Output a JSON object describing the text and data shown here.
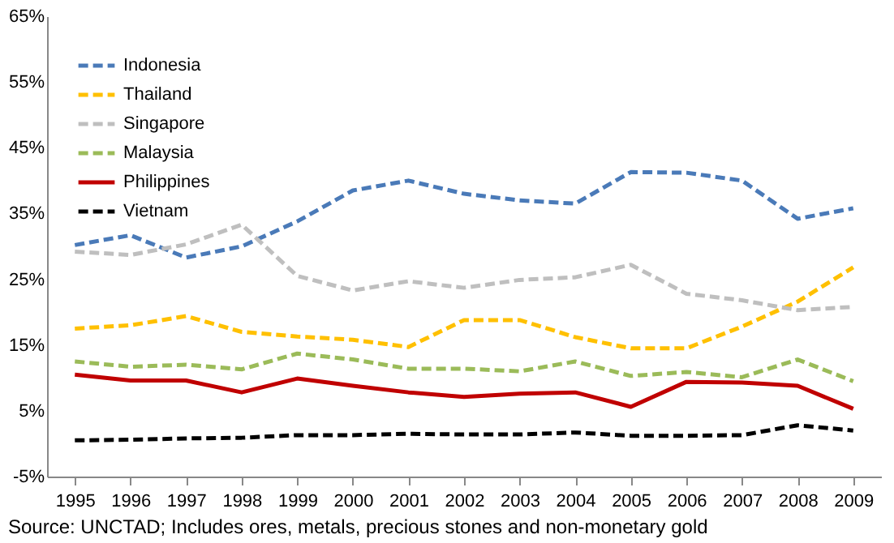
{
  "chart_data": {
    "type": "line",
    "categories": [
      "1995",
      "1996",
      "1997",
      "1998",
      "1999",
      "2000",
      "2001",
      "2002",
      "2003",
      "2004",
      "2005",
      "2006",
      "2007",
      "2008",
      "2009"
    ],
    "series": [
      {
        "name": "Indonesia",
        "color": "#4a7ab8",
        "line_style": "dashed",
        "values": [
          30.2,
          31.7,
          28.3,
          30,
          33.8,
          38.5,
          40,
          38,
          37,
          36.5,
          41.3,
          41.2,
          40,
          34.2,
          35.8
        ]
      },
      {
        "name": "Thailand",
        "color": "#ffc000",
        "line_style": "dashed",
        "values": [
          17.5,
          18,
          19.4,
          17,
          16.3,
          15.8,
          14.7,
          18.8,
          18.8,
          16.2,
          14.5,
          14.5,
          17.8,
          21.6,
          26.8
        ]
      },
      {
        "name": "Singapore",
        "color": "#bfbfbf",
        "line_style": "dashed",
        "values": [
          29.2,
          28.7,
          30.3,
          33.3,
          25.5,
          23.3,
          24.7,
          23.7,
          24.9,
          25.3,
          27.2,
          22.8,
          21.8,
          20.3,
          20.8
        ]
      },
      {
        "name": "Malaysia",
        "color": "#9bbb59",
        "line_style": "dashed",
        "values": [
          12.5,
          11.7,
          12,
          11.3,
          13.7,
          12.8,
          11.4,
          11.4,
          11,
          12.5,
          10.3,
          10.9,
          10.1,
          12.8,
          9.5
        ]
      },
      {
        "name": "Philippines",
        "color": "#c00000",
        "line_style": "solid",
        "values": [
          10.5,
          9.6,
          9.6,
          7.8,
          9.9,
          8.8,
          7.8,
          7.1,
          7.6,
          7.8,
          5.6,
          9.4,
          9.3,
          8.8,
          5.3
        ]
      },
      {
        "name": "Vietnam",
        "color": "#000000",
        "line_style": "dashed",
        "values": [
          0.5,
          0.6,
          0.8,
          0.9,
          1.3,
          1.3,
          1.5,
          1.4,
          1.4,
          1.7,
          1.2,
          1.2,
          1.3,
          2.8,
          2
        ]
      }
    ],
    "ylim": [
      -5,
      65
    ],
    "yticks": [
      {
        "value": -5,
        "label": "-5%"
      },
      {
        "value": 5,
        "label": "5%"
      },
      {
        "value": 15,
        "label": "15%"
      },
      {
        "value": 25,
        "label": "25%"
      },
      {
        "value": 35,
        "label": "35%"
      },
      {
        "value": 45,
        "label": "45%"
      },
      {
        "value": 55,
        "label": "55%"
      },
      {
        "value": 65,
        "label": "65%"
      }
    ],
    "grid": false,
    "legend": "top left",
    "marker": "none",
    "annotations": [
      "Source: UNCTAD;  Includes ores, metals, precious stones and non-monetary gold"
    ]
  }
}
